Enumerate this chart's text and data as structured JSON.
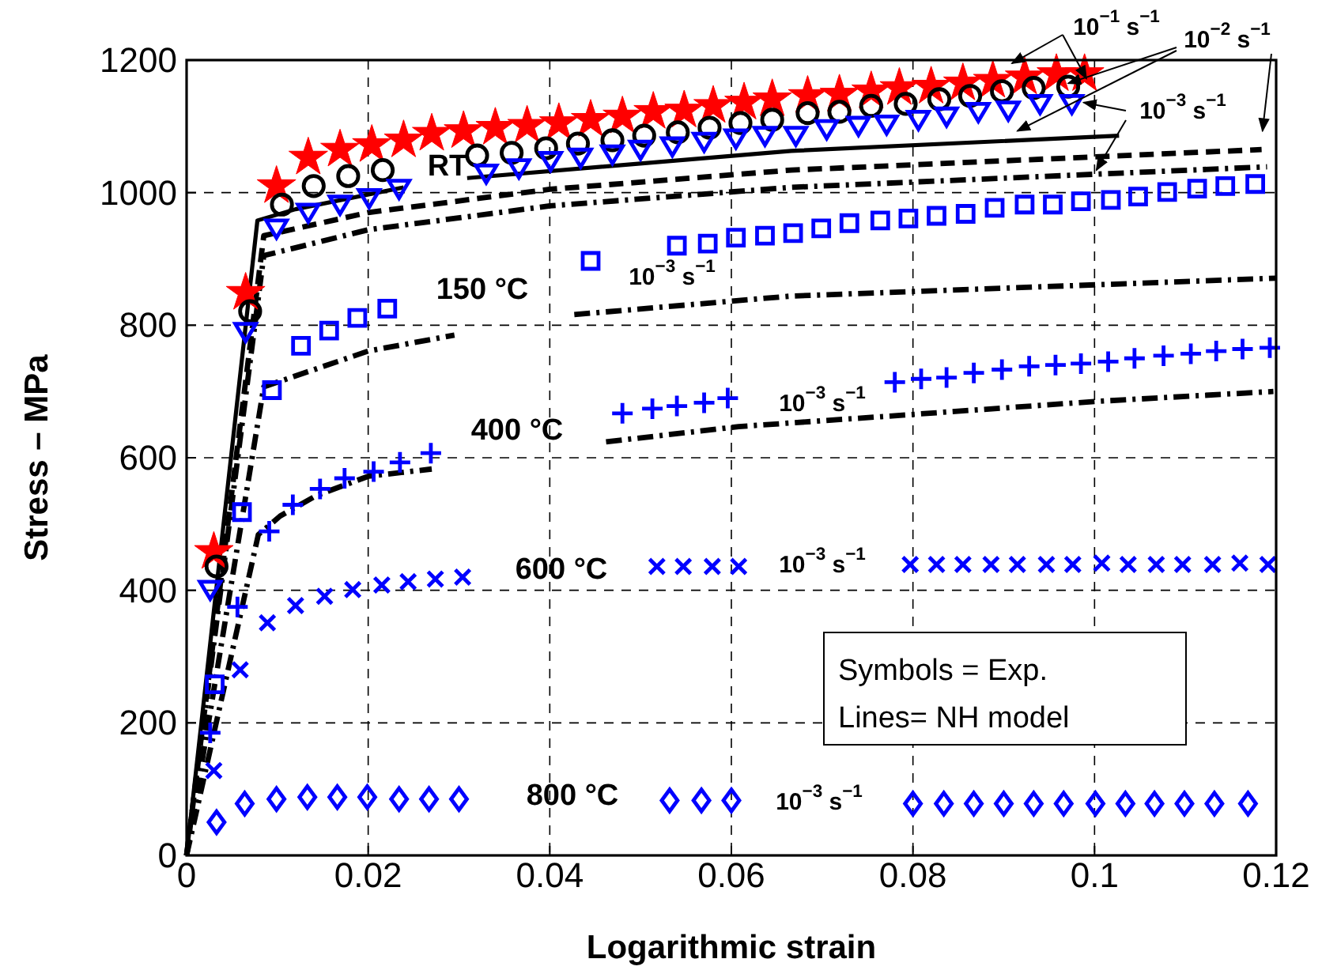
{
  "chart_data": {
    "type": "scatter",
    "xlabel": "Logarithmic strain",
    "ylabel": "Stress – MPa",
    "xlim": [
      0,
      0.12
    ],
    "xticks": [
      0,
      0.02,
      0.04,
      0.06,
      0.08,
      0.1,
      0.12
    ],
    "ylim": [
      0,
      1200
    ],
    "yticks": [
      0,
      200,
      400,
      600,
      800,
      1000,
      1200
    ],
    "grid": true,
    "series": [
      {
        "type": "line",
        "color": "#000000",
        "line_style": "solid",
        "marker": "none",
        "x": [
          0,
          0.0078,
          0.012,
          0.0239,
          0.028,
          0.0309,
          0.0666,
          0.1027
        ],
        "values": [
          0,
          958,
          975,
          1008,
          null,
          1022,
          1063,
          1086
        ]
      },
      {
        "type": "line",
        "color": "#000000",
        "line_style": "dashed",
        "marker": "none",
        "x": [
          0,
          0.0085,
          0.02,
          0.04,
          0.0666,
          0.1184
        ],
        "values": [
          0,
          935,
          970,
          1005,
          1034,
          1065
        ]
      },
      {
        "type": "line",
        "color": "#000000",
        "line_style": "dashdot",
        "marker": "none",
        "x": [
          0,
          0.0085,
          0.02,
          0.04,
          0.0666,
          0.119
        ],
        "values": [
          0,
          905,
          944,
          980,
          1008,
          1039
        ]
      },
      {
        "type": "line",
        "color": "#000000",
        "line_style": "dashdot",
        "marker": "none",
        "x": [
          0,
          0.0085,
          0.02,
          0.0295,
          0.036,
          0.0427,
          0.0666,
          0.12
        ],
        "values": [
          0,
          707,
          761,
          785,
          null,
          816,
          844,
          871
        ]
      },
      {
        "type": "line",
        "color": "#000000",
        "line_style": "dashdot",
        "marker": "none",
        "x": [
          0,
          0.0079,
          0.0103,
          0.0143,
          0.02,
          0.027,
          0.036,
          0.0462,
          0.0608,
          0.0765,
          0.1002,
          0.1197
        ],
        "values": [
          0,
          484,
          512,
          543,
          572,
          583,
          null,
          624,
          647,
          662,
          685,
          700
        ]
      },
      {
        "color": "#ff0000",
        "marker": "star",
        "x": [
          0.003,
          0.0065,
          0.0099,
          0.0134,
          0.0169,
          0.0204,
          0.0239,
          0.027,
          0.0305,
          0.034,
          0.0375,
          0.041,
          0.0445,
          0.048,
          0.0514,
          0.0548,
          0.058,
          0.0614,
          0.0645,
          0.0684,
          0.0719,
          0.0754,
          0.0785,
          0.082,
          0.0855,
          0.0888,
          0.0923,
          0.0958,
          0.0989
        ],
        "values": [
          458,
          849,
          1010,
          1053,
          1065,
          1072,
          1079,
          1089,
          1093,
          1098,
          1101,
          1105,
          1110,
          1115,
          1122,
          1124,
          1131,
          1136,
          1141,
          1146,
          1148,
          1153,
          1158,
          1160,
          1165,
          1169,
          1174,
          1179,
          1179
        ]
      },
      {
        "color": "#000000",
        "marker": "circle",
        "x": [
          0.0033,
          0.007,
          0.0105,
          0.014,
          0.0178,
          0.0216,
          0.032,
          0.0358,
          0.0396,
          0.0431,
          0.0469,
          0.0504,
          0.0541,
          0.0576,
          0.061,
          0.0645,
          0.0684,
          0.0719,
          0.0754,
          0.0792,
          0.0829,
          0.0863,
          0.0898,
          0.0933,
          0.0971
        ],
        "values": [
          436,
          821,
          982,
          1010,
          1025,
          1034,
          1056,
          1060,
          1067,
          1074,
          1079,
          1086,
          1091,
          1098,
          1105,
          1110,
          1120,
          1122,
          1131,
          1134,
          1141,
          1146,
          1153,
          1158,
          1160
        ]
      },
      {
        "color": "#0000ff",
        "marker": "triangle",
        "x": [
          0.0026,
          0.0065,
          0.0099,
          0.0134,
          0.0169,
          0.0201,
          0.0234,
          0.033,
          0.0366,
          0.0401,
          0.0434,
          0.0469,
          0.05,
          0.0535,
          0.057,
          0.0605,
          0.0637,
          0.0671,
          0.0705,
          0.074,
          0.0771,
          0.0806,
          0.0837,
          0.0872,
          0.0905,
          0.094,
          0.0975
        ],
        "values": [
          401,
          790,
          946,
          970,
          982,
          992,
          1006,
          1029,
          1037,
          1048,
          1053,
          1058,
          1065,
          1070,
          1077,
          1082,
          1086,
          1086,
          1096,
          1101,
          1103,
          1110,
          1115,
          1122,
          1124,
          1134,
          1134
        ]
      },
      {
        "color": "#0000ff",
        "marker": "square",
        "x": [
          0.0031,
          0.0061,
          0.0094,
          0.0126,
          0.0157,
          0.0188,
          0.0221,
          0.0445,
          0.054,
          0.0574,
          0.0605,
          0.0637,
          0.0668,
          0.0699,
          0.073,
          0.0764,
          0.0795,
          0.0826,
          0.0858,
          0.089,
          0.0923,
          0.0954,
          0.0985,
          0.1018,
          0.1048,
          0.108,
          0.1113,
          0.1144,
          0.1177
        ],
        "values": [
          258,
          518,
          702,
          769,
          792,
          811,
          825,
          897,
          920,
          923,
          932,
          935,
          939,
          946,
          954,
          958,
          961,
          965,
          968,
          977,
          982,
          982,
          987,
          989,
          994,
          1001,
          1006,
          1010,
          1013
        ]
      },
      {
        "color": "#0000ff",
        "marker": "plus",
        "x": [
          0.0026,
          0.0056,
          0.0091,
          0.0117,
          0.0147,
          0.0174,
          0.0206,
          0.0235,
          0.0269,
          0.048,
          0.0513,
          0.054,
          0.057,
          0.0596,
          0.078,
          0.0809,
          0.0837,
          0.0867,
          0.0898,
          0.0928,
          0.0957,
          0.0985,
          0.1015,
          0.1044,
          0.1076,
          0.1106,
          0.1134,
          0.1163,
          0.1193
        ],
        "values": [
          185,
          375,
          489,
          529,
          553,
          569,
          579,
          593,
          607,
          667,
          674,
          678,
          683,
          690,
          714,
          719,
          721,
          728,
          733,
          738,
          740,
          742,
          745,
          750,
          754,
          757,
          761,
          764,
          766
        ]
      },
      {
        "color": "#0000ff",
        "marker": "cross",
        "x": [
          0.003,
          0.0059,
          0.0089,
          0.012,
          0.0152,
          0.0183,
          0.0215,
          0.0244,
          0.0274,
          0.0304,
          0.0518,
          0.0547,
          0.0579,
          0.0608,
          0.0797,
          0.0826,
          0.0855,
          0.0886,
          0.0915,
          0.0947,
          0.0976,
          0.1008,
          0.1037,
          0.1068,
          0.1097,
          0.113,
          0.116,
          0.1191
        ],
        "values": [
          128,
          280,
          351,
          377,
          391,
          401,
          408,
          413,
          417,
          420,
          436,
          436,
          436,
          436,
          439,
          439,
          439,
          439,
          439,
          439,
          439,
          441,
          439,
          439,
          439,
          439,
          441,
          439
        ]
      },
      {
        "color": "#0000ff",
        "marker": "diamond",
        "x": [
          0.0033,
          0.0064,
          0.0099,
          0.0133,
          0.0166,
          0.0199,
          0.0234,
          0.0267,
          0.03,
          0.0532,
          0.0567,
          0.06,
          0.08,
          0.0834,
          0.0867,
          0.09,
          0.0933,
          0.0966,
          0.1001,
          0.1034,
          0.1066,
          0.1099,
          0.1132,
          0.1169
        ],
        "values": [
          50,
          78,
          85,
          88,
          88,
          88,
          85,
          85,
          85,
          83,
          83,
          83,
          78,
          78,
          78,
          78,
          78,
          78,
          78,
          78,
          78,
          78,
          78,
          78
        ]
      }
    ],
    "annotations": [
      {
        "text": "10$^{−1}$ s$^{−1}$",
        "x": 0.0991,
        "y": 1172
      },
      {
        "text": "10$^{−2}$ s$^{−1}$",
        "x": 0.0971,
        "y": 1165
      },
      {
        "text": "10$^{−3}$ s$^{−1}$",
        "x": 0.0988,
        "y": 1136
      },
      "RT",
      "150 °C",
      "10$^{−3}$ s$^{−1}$",
      "400 °C",
      "10$^{−3}$ s$^{−1}$",
      "600 °C",
      "10$^{−3}$ s$^{−1}$",
      "800 °C",
      "10$^{−3}$ s$^{−1}$",
      "Symbols = Exp.",
      "Lines= NH model"
    ]
  }
}
